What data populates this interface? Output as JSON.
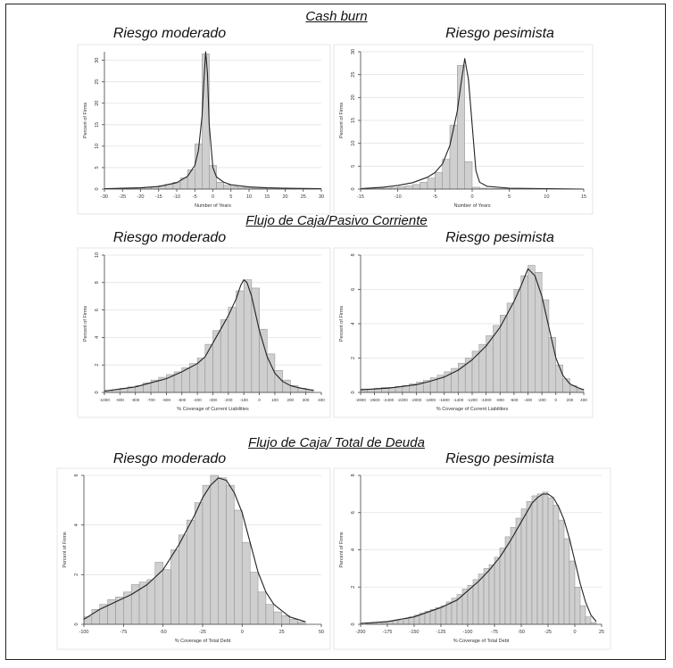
{
  "sections": [
    {
      "title": "Cash burn"
    },
    {
      "title": "Flujo de Caja/Pasivo Corriente"
    },
    {
      "title": "Flujo de Caja/ Total de Deuda"
    }
  ],
  "panel_titles": {
    "moderate": "Riesgo moderado",
    "pessimistic": "Riesgo pesimista"
  },
  "chart_data": [
    {
      "type": "bar",
      "title": "Riesgo moderado",
      "section": "Cash burn",
      "xlabel": "Number of Years",
      "ylabel": "Percent of Firms",
      "xlim": [
        -30,
        30
      ],
      "ylim": [
        0,
        32
      ],
      "xticks": [
        -30,
        -25,
        -20,
        -15,
        -10,
        -5,
        0,
        5,
        10,
        15,
        20,
        25,
        30
      ],
      "yticks": [
        0,
        5,
        10,
        15,
        20,
        25,
        30
      ],
      "grid": true,
      "bin_centers": [
        -28,
        -26,
        -24,
        -22,
        -20,
        -18,
        -16,
        -14,
        -12,
        -10,
        -8,
        -6,
        -4,
        -2,
        0,
        2,
        4,
        6,
        8,
        10,
        12,
        14,
        16,
        18,
        20,
        22,
        24,
        26,
        28
      ],
      "values": [
        0.1,
        0.1,
        0.2,
        0.2,
        0.3,
        0.4,
        0.5,
        0.8,
        1.1,
        1.6,
        2.6,
        4.5,
        10.5,
        31.5,
        5.5,
        1.6,
        0.9,
        0.6,
        0.4,
        0.3,
        0.2,
        0.2,
        0.1,
        0.1,
        0.1,
        0.1,
        0.1,
        0.1,
        0.1
      ],
      "density": {
        "x": [
          -30,
          -20,
          -15,
          -10,
          -7,
          -5,
          -4,
          -3,
          -2.5,
          -2,
          -1.5,
          -1,
          0,
          1,
          3,
          5,
          10,
          15,
          20,
          30
        ],
        "y": [
          0.1,
          0.3,
          0.6,
          1.5,
          3,
          5.5,
          9,
          17,
          25,
          32,
          27,
          15,
          5,
          2.8,
          1.6,
          1.0,
          0.5,
          0.3,
          0.2,
          0.1
        ]
      }
    },
    {
      "type": "bar",
      "title": "Riesgo pesimista",
      "section": "Cash burn",
      "xlabel": "Number of Years",
      "ylabel": "Percent of Firms",
      "xlim": [
        -15,
        15
      ],
      "ylim": [
        0,
        30
      ],
      "xticks": [
        -15,
        -10,
        -5,
        0,
        5,
        10,
        15
      ],
      "yticks": [
        0,
        5,
        10,
        15,
        20,
        25,
        30
      ],
      "grid": true,
      "bin_centers": [
        -14.5,
        -13.5,
        -12.5,
        -11.5,
        -10.5,
        -9.5,
        -8.5,
        -7.5,
        -6.5,
        -5.5,
        -4.5,
        -3.5,
        -2.5,
        -1.5,
        -0.5,
        0.5,
        1.5,
        2.5,
        3.5,
        4.5
      ],
      "values": [
        0.1,
        0.1,
        0.2,
        0.2,
        0.3,
        0.5,
        0.7,
        1.0,
        1.5,
        2.4,
        3.6,
        6.5,
        14.0,
        27.0,
        6.0,
        0.4,
        0.2,
        0.1,
        0.1,
        0.1
      ],
      "density": {
        "x": [
          -15,
          -12,
          -10,
          -8,
          -6,
          -5,
          -4,
          -3,
          -2,
          -1.5,
          -1,
          -0.5,
          0,
          0.5,
          1,
          2,
          5,
          10,
          15
        ],
        "y": [
          0.1,
          0.4,
          0.8,
          1.4,
          2.6,
          3.6,
          5.5,
          9.5,
          17,
          23,
          28.5,
          24,
          14,
          4,
          1.5,
          0.6,
          0.2,
          0.1,
          0
        ]
      }
    },
    {
      "type": "bar",
      "title": "Riesgo moderado",
      "section": "Flujo de Caja/Pasivo Corriente",
      "xlabel": "% Coverage of Current Liabilities",
      "ylabel": "Percent of Firms",
      "xlim": [
        -1000,
        400
      ],
      "ylim": [
        0,
        10
      ],
      "xticks": [
        -1000,
        -900,
        -800,
        -700,
        -600,
        -500,
        -400,
        -300,
        -200,
        -100,
        0,
        100,
        200,
        300,
        400
      ],
      "yticks": [
        0,
        2,
        4,
        6,
        8,
        10
      ],
      "grid": true,
      "bin_centers": [
        -975,
        -925,
        -875,
        -825,
        -775,
        -725,
        -675,
        -625,
        -575,
        -525,
        -475,
        -425,
        -375,
        -325,
        -275,
        -225,
        -175,
        -125,
        -75,
        -25,
        25,
        75,
        125,
        175,
        225,
        275,
        325
      ],
      "values": [
        0.15,
        0.2,
        0.3,
        0.4,
        0.5,
        0.7,
        0.9,
        1.1,
        1.3,
        1.5,
        1.8,
        2.1,
        2.5,
        3.5,
        4.5,
        5.3,
        6.2,
        7.4,
        8.2,
        7.6,
        4.6,
        2.8,
        1.6,
        0.9,
        0.5,
        0.3,
        0.2
      ],
      "density": {
        "x": [
          -1000,
          -900,
          -800,
          -700,
          -600,
          -500,
          -400,
          -350,
          -300,
          -250,
          -200,
          -150,
          -120,
          -100,
          -80,
          -50,
          0,
          50,
          100,
          150,
          200,
          250,
          300,
          350
        ],
        "y": [
          0.1,
          0.25,
          0.4,
          0.7,
          1.0,
          1.5,
          2.1,
          2.6,
          3.6,
          4.6,
          5.6,
          6.8,
          7.8,
          8.2,
          8.0,
          7.0,
          4.5,
          2.6,
          1.4,
          0.8,
          0.5,
          0.35,
          0.25,
          0.15
        ]
      }
    },
    {
      "type": "bar",
      "title": "Riesgo pesimista",
      "section": "Flujo de Caja/Pasivo Corriente",
      "xlabel": "% Coverage of Current Liabilities",
      "ylabel": "Percent of Firms",
      "xlim": [
        -2800,
        400
      ],
      "ylim": [
        0,
        8
      ],
      "xticks": [
        -2800,
        -2600,
        -2400,
        -2200,
        -2000,
        -1800,
        -1600,
        -1400,
        -1200,
        -1000,
        -800,
        -600,
        -400,
        -200,
        0,
        200,
        400
      ],
      "yticks": [
        0,
        2,
        4,
        6,
        8
      ],
      "grid": true,
      "bin_centers": [
        -2750,
        -2650,
        -2550,
        -2450,
        -2350,
        -2250,
        -2150,
        -2050,
        -1950,
        -1850,
        -1750,
        -1650,
        -1550,
        -1450,
        -1350,
        -1250,
        -1150,
        -1050,
        -950,
        -850,
        -750,
        -650,
        -550,
        -450,
        -350,
        -250,
        -150,
        -50,
        50,
        150,
        250,
        350
      ],
      "values": [
        0.2,
        0.2,
        0.25,
        0.3,
        0.3,
        0.35,
        0.4,
        0.5,
        0.6,
        0.7,
        0.85,
        1.0,
        1.2,
        1.4,
        1.7,
        2.0,
        2.4,
        2.8,
        3.3,
        3.9,
        4.5,
        5.2,
        6.0,
        6.8,
        7.4,
        7.0,
        5.4,
        3.2,
        1.6,
        0.8,
        0.4,
        0.2
      ],
      "density": {
        "x": [
          -2800,
          -2400,
          -2000,
          -1800,
          -1600,
          -1400,
          -1200,
          -1000,
          -800,
          -600,
          -500,
          -450,
          -400,
          -300,
          -200,
          -100,
          0,
          100,
          200,
          300,
          400
        ],
        "y": [
          0.15,
          0.25,
          0.45,
          0.65,
          0.9,
          1.3,
          1.9,
          2.7,
          3.8,
          5.3,
          6.2,
          6.7,
          7.2,
          6.8,
          5.6,
          3.8,
          2.0,
          1.0,
          0.5,
          0.3,
          0.15
        ]
      }
    },
    {
      "type": "bar",
      "title": "Riesgo moderado",
      "section": "Flujo de Caja/ Total de Deuda",
      "xlabel": "% Coverage of Total Debt",
      "ylabel": "Percent of Firms",
      "xlim": [
        -100,
        50
      ],
      "ylim": [
        0,
        6
      ],
      "xticks": [
        -100,
        -75,
        -50,
        -25,
        0,
        25,
        50
      ],
      "yticks": [
        0,
        2,
        4,
        6
      ],
      "grid": true,
      "bin_centers": [
        -97.5,
        -92.5,
        -87.5,
        -82.5,
        -77.5,
        -72.5,
        -67.5,
        -62.5,
        -57.5,
        -52.5,
        -47.5,
        -42.5,
        -37.5,
        -32.5,
        -27.5,
        -22.5,
        -17.5,
        -12.5,
        -7.5,
        -2.5,
        2.5,
        7.5,
        12.5,
        17.5,
        22.5,
        27.5,
        32.5,
        37.5
      ],
      "values": [
        0.3,
        0.6,
        0.8,
        1.0,
        1.1,
        1.3,
        1.6,
        1.7,
        1.8,
        2.5,
        2.2,
        3.0,
        3.6,
        4.2,
        4.9,
        5.6,
        6.0,
        5.9,
        5.6,
        4.6,
        3.3,
        2.1,
        1.3,
        0.8,
        0.5,
        0.35,
        0.2,
        0.1
      ],
      "density": {
        "x": [
          -100,
          -90,
          -80,
          -70,
          -60,
          -50,
          -40,
          -30,
          -25,
          -20,
          -15,
          -10,
          -5,
          0,
          5,
          10,
          15,
          20,
          30,
          40
        ],
        "y": [
          0.2,
          0.6,
          0.9,
          1.2,
          1.6,
          2.2,
          3.2,
          4.4,
          5.1,
          5.6,
          5.9,
          5.8,
          5.3,
          4.5,
          3.3,
          2.1,
          1.3,
          0.8,
          0.3,
          0.1
        ]
      }
    },
    {
      "type": "bar",
      "title": "Riesgo pesimista",
      "section": "Flujo de Caja/ Total de Deuda",
      "xlabel": "% Coverage of Total Debt",
      "ylabel": "Percent of Firms",
      "xlim": [
        -200,
        25
      ],
      "ylim": [
        0,
        8
      ],
      "xticks": [
        -200,
        -175,
        -150,
        -125,
        -100,
        -75,
        -50,
        -25,
        0,
        25
      ],
      "yticks": [
        0,
        2,
        4,
        6,
        8
      ],
      "grid": true,
      "bin_centers": [
        -192.5,
        -187.5,
        -182.5,
        -177.5,
        -172.5,
        -167.5,
        -162.5,
        -157.5,
        -152.5,
        -147.5,
        -142.5,
        -137.5,
        -132.5,
        -127.5,
        -122.5,
        -117.5,
        -112.5,
        -107.5,
        -102.5,
        -97.5,
        -92.5,
        -87.5,
        -82.5,
        -77.5,
        -72.5,
        -67.5,
        -62.5,
        -57.5,
        -52.5,
        -47.5,
        -42.5,
        -37.5,
        -32.5,
        -27.5,
        -22.5,
        -17.5,
        -12.5,
        -7.5,
        -2.5,
        2.5,
        7.5,
        12.5,
        17.5
      ],
      "values": [
        0.05,
        0.05,
        0.1,
        0.1,
        0.15,
        0.2,
        0.2,
        0.3,
        0.4,
        0.5,
        0.6,
        0.7,
        0.8,
        0.9,
        1.0,
        1.2,
        1.4,
        1.6,
        1.9,
        2.1,
        2.4,
        2.7,
        3.0,
        3.2,
        3.6,
        4.1,
        4.7,
        5.2,
        5.7,
        6.2,
        6.6,
        6.9,
        7.0,
        7.1,
        6.8,
        6.4,
        5.6,
        4.6,
        3.4,
        2.0,
        1.0,
        0.4,
        0.1
      ],
      "density": {
        "x": [
          -200,
          -175,
          -150,
          -125,
          -110,
          -100,
          -90,
          -80,
          -70,
          -60,
          -50,
          -45,
          -40,
          -35,
          -30,
          -25,
          -20,
          -15,
          -10,
          -5,
          0,
          5,
          10,
          15,
          20
        ],
        "y": [
          0.05,
          0.15,
          0.4,
          0.9,
          1.3,
          1.8,
          2.3,
          2.9,
          3.6,
          4.5,
          5.5,
          6.0,
          6.5,
          6.8,
          7.0,
          7.0,
          6.8,
          6.3,
          5.6,
          4.6,
          3.4,
          2.2,
          1.2,
          0.5,
          0.15
        ]
      }
    }
  ]
}
